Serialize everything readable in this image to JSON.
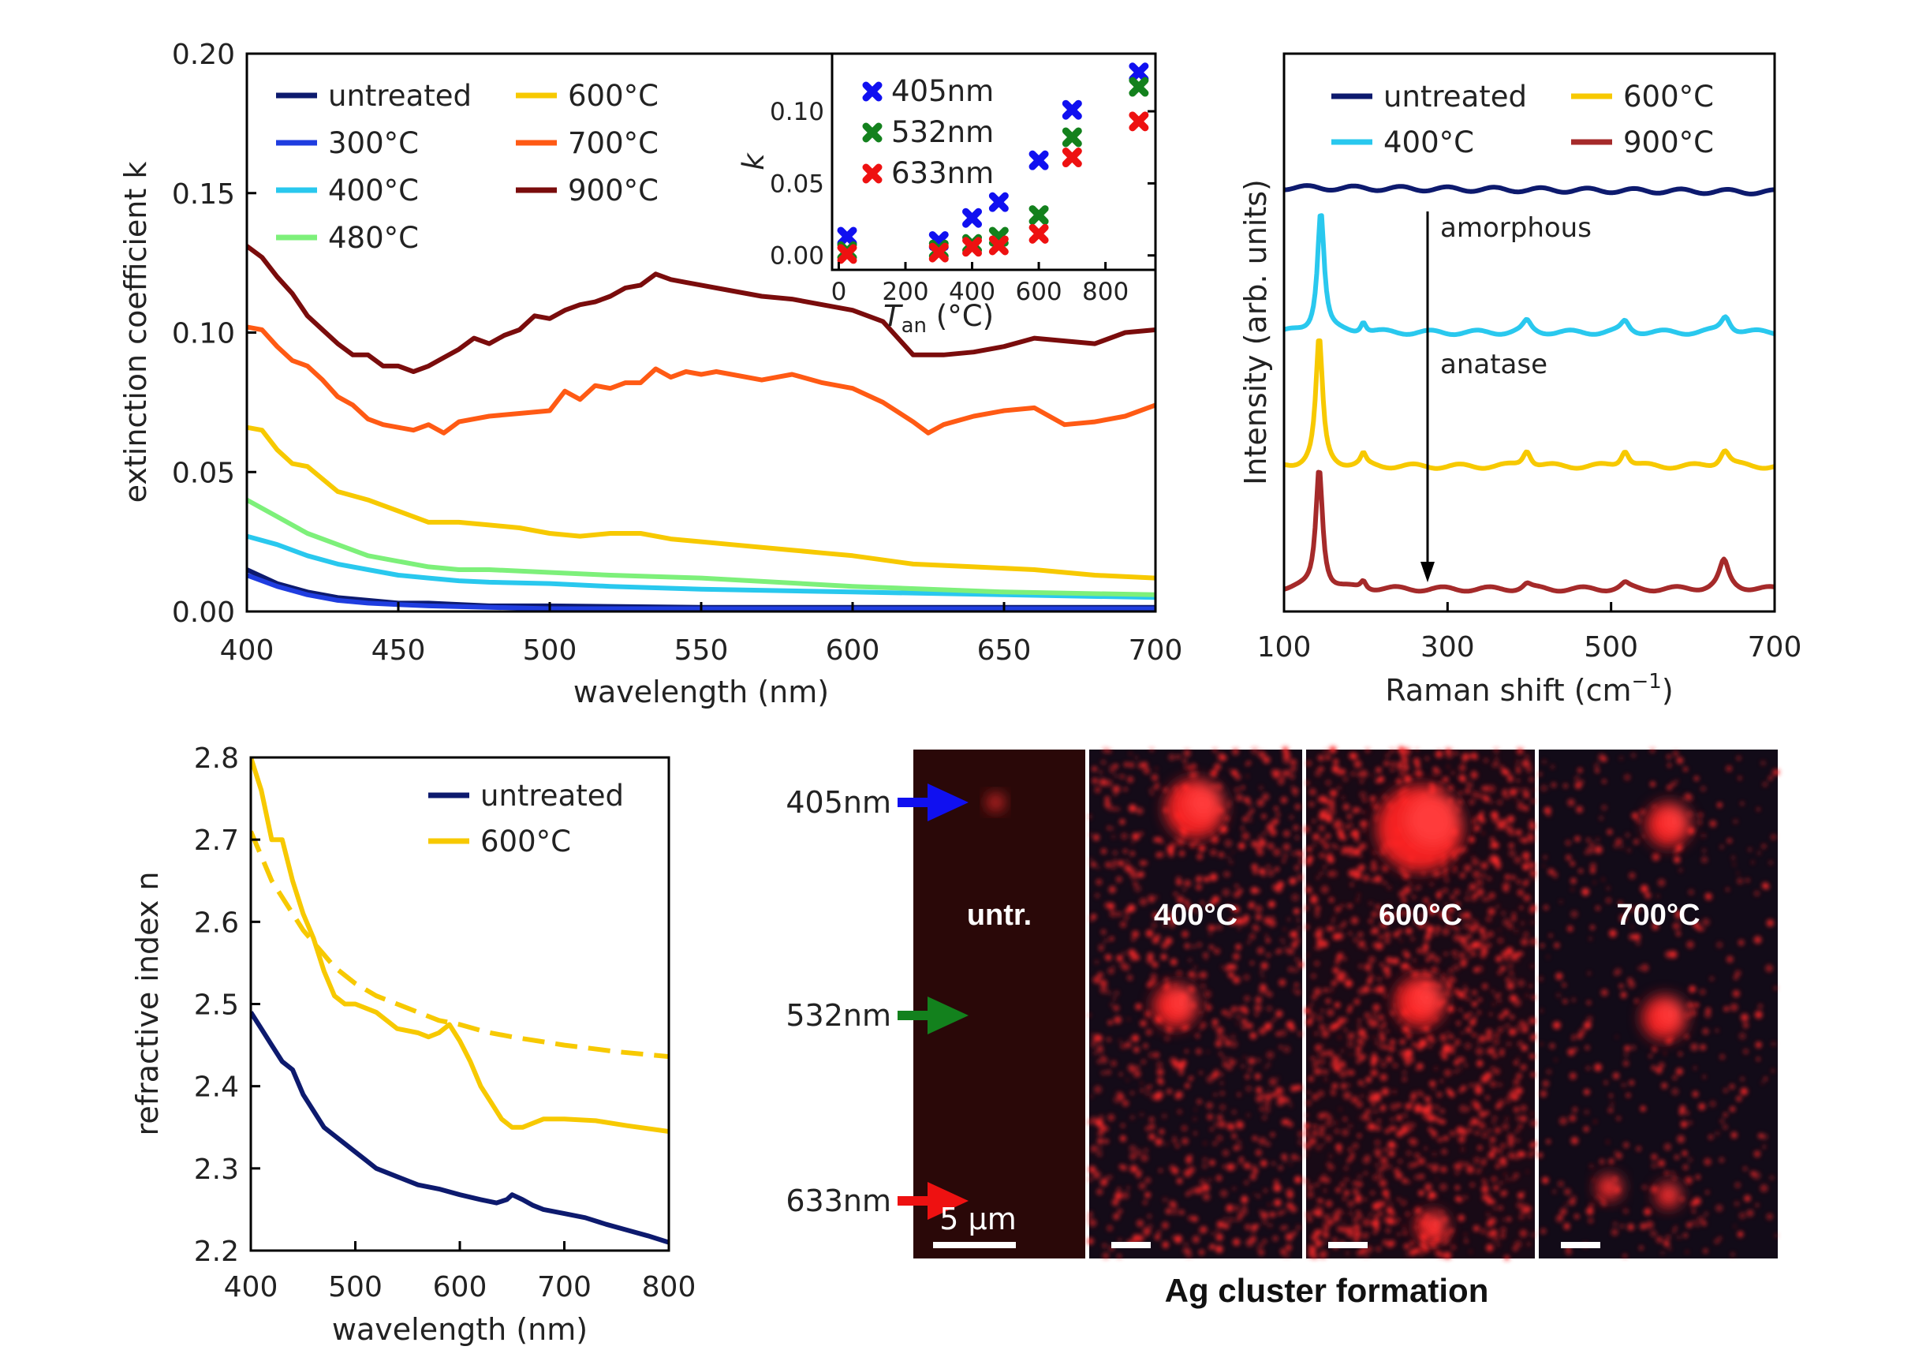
{
  "colors": {
    "untreated": "#0d1a6e",
    "300C": "#1f3de0",
    "400C": "#29c8ee",
    "480C": "#7df07a",
    "600C": "#f7c900",
    "700C": "#ff5a14",
    "900C": "#7a0c0c",
    "900C_raman": "#a52a2a",
    "405nm": "#1010f0",
    "532nm": "#13811d",
    "633nm": "#ee1111"
  },
  "chart_data": [
    {
      "id": "extinction",
      "type": "line",
      "xlabel": "wavelength (nm)",
      "ylabel": "extinction coefficient k",
      "xlim": [
        400,
        700
      ],
      "ylim": [
        0,
        0.2
      ],
      "xticks": [
        "400",
        "450",
        "500",
        "550",
        "600",
        "650",
        "700"
      ],
      "yticks": [
        "0.00",
        "0.05",
        "0.10",
        "0.15",
        "0.20"
      ],
      "legend_position": "top-left",
      "series": [
        {
          "key": "untreated",
          "name": "untreated",
          "x": [
            400,
            410,
            420,
            430,
            440,
            450,
            460,
            480,
            500,
            550,
            600,
            650,
            700
          ],
          "y": [
            0.015,
            0.01,
            0.007,
            0.005,
            0.004,
            0.003,
            0.003,
            0.002,
            0.002,
            0.0015,
            0.0015,
            0.0015,
            0.0015
          ]
        },
        {
          "key": "300C",
          "name": "300°C",
          "x": [
            400,
            410,
            420,
            430,
            440,
            450,
            460,
            480,
            500,
            550,
            600,
            650,
            700
          ],
          "y": [
            0.013,
            0.009,
            0.006,
            0.004,
            0.003,
            0.0025,
            0.002,
            0.0015,
            0.001,
            0.001,
            0.001,
            0.001,
            0.001
          ]
        },
        {
          "key": "400C",
          "name": "400°C",
          "x": [
            400,
            410,
            420,
            430,
            440,
            450,
            460,
            470,
            480,
            500,
            520,
            550,
            600,
            650,
            700
          ],
          "y": [
            0.027,
            0.024,
            0.02,
            0.017,
            0.015,
            0.013,
            0.012,
            0.011,
            0.0105,
            0.01,
            0.009,
            0.008,
            0.007,
            0.006,
            0.005
          ]
        },
        {
          "key": "480C",
          "name": "480°C",
          "x": [
            400,
            410,
            420,
            430,
            440,
            450,
            460,
            470,
            480,
            500,
            520,
            550,
            600,
            650,
            700
          ],
          "y": [
            0.04,
            0.034,
            0.028,
            0.024,
            0.02,
            0.018,
            0.016,
            0.015,
            0.015,
            0.014,
            0.013,
            0.012,
            0.009,
            0.007,
            0.006
          ]
        },
        {
          "key": "600C",
          "name": "600°C",
          "x": [
            400,
            405,
            410,
            415,
            420,
            430,
            440,
            450,
            460,
            470,
            480,
            490,
            500,
            510,
            520,
            530,
            540,
            550,
            560,
            570,
            580,
            590,
            600,
            620,
            640,
            660,
            680,
            700
          ],
          "y": [
            0.066,
            0.065,
            0.058,
            0.053,
            0.052,
            0.043,
            0.04,
            0.036,
            0.032,
            0.032,
            0.031,
            0.03,
            0.028,
            0.027,
            0.028,
            0.028,
            0.026,
            0.025,
            0.024,
            0.023,
            0.022,
            0.021,
            0.02,
            0.017,
            0.016,
            0.015,
            0.013,
            0.012
          ]
        },
        {
          "key": "700C",
          "name": "700°C",
          "x": [
            400,
            405,
            410,
            415,
            420,
            425,
            430,
            435,
            440,
            445,
            450,
            455,
            460,
            465,
            470,
            480,
            490,
            500,
            505,
            510,
            515,
            520,
            525,
            530,
            535,
            540,
            545,
            550,
            555,
            560,
            570,
            580,
            590,
            600,
            610,
            620,
            625,
            630,
            640,
            650,
            660,
            670,
            680,
            690,
            700
          ],
          "y": [
            0.102,
            0.101,
            0.095,
            0.09,
            0.088,
            0.083,
            0.077,
            0.074,
            0.069,
            0.067,
            0.066,
            0.065,
            0.067,
            0.064,
            0.068,
            0.07,
            0.071,
            0.072,
            0.079,
            0.076,
            0.081,
            0.08,
            0.082,
            0.082,
            0.087,
            0.084,
            0.086,
            0.085,
            0.086,
            0.085,
            0.083,
            0.085,
            0.082,
            0.08,
            0.075,
            0.068,
            0.064,
            0.067,
            0.07,
            0.072,
            0.073,
            0.067,
            0.068,
            0.07,
            0.074
          ]
        },
        {
          "key": "900C",
          "name": "900°C",
          "x": [
            400,
            405,
            410,
            415,
            420,
            425,
            430,
            435,
            440,
            445,
            450,
            455,
            460,
            465,
            470,
            475,
            480,
            485,
            490,
            495,
            500,
            505,
            510,
            515,
            520,
            525,
            530,
            535,
            540,
            545,
            550,
            560,
            570,
            580,
            590,
            600,
            610,
            620,
            630,
            640,
            650,
            660,
            670,
            680,
            690,
            700
          ],
          "y": [
            0.131,
            0.127,
            0.12,
            0.114,
            0.106,
            0.101,
            0.096,
            0.092,
            0.092,
            0.088,
            0.088,
            0.086,
            0.088,
            0.091,
            0.094,
            0.098,
            0.096,
            0.099,
            0.101,
            0.106,
            0.105,
            0.108,
            0.11,
            0.111,
            0.113,
            0.116,
            0.117,
            0.121,
            0.119,
            0.118,
            0.117,
            0.115,
            0.113,
            0.112,
            0.11,
            0.108,
            0.104,
            0.092,
            0.092,
            0.093,
            0.095,
            0.098,
            0.097,
            0.096,
            0.1,
            0.101
          ]
        }
      ]
    },
    {
      "id": "inset",
      "type": "scatter",
      "xlabel_main": "T",
      "xlabel_sub": "an",
      "xlabel_unit": " (°C)",
      "ylabel": "k",
      "xlim": [
        -20,
        950
      ],
      "ylim": [
        -0.01,
        0.14
      ],
      "xticks": [
        "0",
        "200",
        "400",
        "600",
        "800"
      ],
      "yticks": [
        "0.00",
        "0.05",
        "0.10"
      ],
      "legend_position": "top-left",
      "series": [
        {
          "key": "405nm",
          "name": "405nm",
          "x": [
            25,
            300,
            400,
            480,
            600,
            700,
            900
          ],
          "y": [
            0.013,
            0.01,
            0.026,
            0.037,
            0.066,
            0.101,
            0.127
          ]
        },
        {
          "key": "532nm",
          "name": "532nm",
          "x": [
            25,
            300,
            400,
            480,
            600,
            700,
            900
          ],
          "y": [
            0.003,
            0.004,
            0.008,
            0.013,
            0.028,
            0.082,
            0.117
          ]
        },
        {
          "key": "633nm",
          "name": "633nm",
          "x": [
            25,
            300,
            400,
            480,
            600,
            700,
            900
          ],
          "y": [
            0.001,
            0.002,
            0.006,
            0.007,
            0.015,
            0.068,
            0.093
          ]
        }
      ]
    },
    {
      "id": "raman",
      "type": "line",
      "xlabel": "Raman shift (cm",
      "xlabel_sup": "−1",
      "xlabel_end": ")",
      "ylabel": "Intensity (arb. units)",
      "xlim": [
        100,
        700
      ],
      "xticks": [
        "100",
        "300",
        "500",
        "700"
      ],
      "legend_position": "top",
      "annotations": [
        "amorphous",
        "anatase"
      ],
      "series": [
        {
          "key": "untreated",
          "name": "untreated",
          "baseline": 0.76,
          "peaks": []
        },
        {
          "key": "400C",
          "name": "400°C",
          "baseline": 0.5,
          "peaks": [
            [
              145,
              0.22,
              5
            ],
            [
              197,
              0.02,
              4
            ],
            [
              397,
              0.02,
              6
            ],
            [
              517,
              0.02,
              6
            ],
            [
              640,
              0.03,
              7
            ]
          ]
        },
        {
          "key": "600C",
          "name": "600°C",
          "baseline": 0.26,
          "peaks": [
            [
              143,
              0.23,
              5
            ],
            [
              197,
              0.02,
              4
            ],
            [
              397,
              0.03,
              6
            ],
            [
              517,
              0.03,
              6
            ],
            [
              639,
              0.03,
              7
            ]
          ]
        },
        {
          "key": "900C",
          "name": "900°C",
          "baseline": 0.04,
          "peaks": [
            [
              143,
              0.22,
              5
            ],
            [
              197,
              0.015,
              4
            ],
            [
              397,
              0.01,
              6
            ],
            [
              517,
              0.01,
              6
            ],
            [
              638,
              0.05,
              7
            ]
          ]
        }
      ]
    },
    {
      "id": "refractive",
      "type": "line",
      "xlabel": "wavelength (nm)",
      "ylabel": "refractive index n",
      "xlim": [
        400,
        800
      ],
      "ylim": [
        2.2,
        2.8
      ],
      "xticks": [
        "400",
        "500",
        "600",
        "700",
        "800"
      ],
      "yticks": [
        "2.2",
        "2.3",
        "2.4",
        "2.5",
        "2.6",
        "2.7",
        "2.8"
      ],
      "legend_position": "top-right",
      "series": [
        {
          "key": "untreated",
          "name": "untreated",
          "x": [
            400,
            410,
            420,
            430,
            440,
            450,
            460,
            470,
            480,
            490,
            500,
            510,
            520,
            540,
            560,
            580,
            600,
            620,
            635,
            645,
            650,
            660,
            670,
            680,
            700,
            720,
            740,
            760,
            780,
            800
          ],
          "y": [
            2.49,
            2.47,
            2.45,
            2.43,
            2.42,
            2.39,
            2.37,
            2.35,
            2.34,
            2.33,
            2.32,
            2.31,
            2.3,
            2.29,
            2.28,
            2.275,
            2.268,
            2.262,
            2.258,
            2.262,
            2.268,
            2.262,
            2.255,
            2.25,
            2.245,
            2.24,
            2.232,
            2.225,
            2.218,
            2.21
          ]
        },
        {
          "key": "600C",
          "name": "600°C",
          "style": "solid",
          "x": [
            400,
            410,
            420,
            430,
            440,
            450,
            460,
            470,
            480,
            490,
            500,
            520,
            540,
            560,
            570,
            580,
            590,
            600,
            610,
            620,
            630,
            640,
            650,
            660,
            670,
            680,
            700,
            730,
            760,
            800
          ],
          "y": [
            2.8,
            2.76,
            2.7,
            2.7,
            2.65,
            2.61,
            2.58,
            2.54,
            2.51,
            2.5,
            2.5,
            2.49,
            2.47,
            2.465,
            2.46,
            2.465,
            2.475,
            2.455,
            2.43,
            2.4,
            2.38,
            2.36,
            2.35,
            2.35,
            2.355,
            2.36,
            2.36,
            2.358,
            2.352,
            2.345
          ]
        },
        {
          "key": "600C",
          "name": "",
          "style": "dashed",
          "x": [
            400,
            410,
            420,
            430,
            440,
            450,
            460,
            470,
            480,
            500,
            520,
            540,
            560,
            580,
            600,
            625,
            650,
            675,
            700,
            725,
            750,
            775,
            800
          ],
          "y": [
            2.71,
            2.68,
            2.65,
            2.63,
            2.61,
            2.59,
            2.575,
            2.56,
            2.545,
            2.525,
            2.51,
            2.5,
            2.49,
            2.48,
            2.475,
            2.466,
            2.46,
            2.455,
            2.45,
            2.446,
            2.442,
            2.439,
            2.436
          ]
        }
      ]
    }
  ],
  "microscopy": {
    "wavelength_labels": [
      {
        "key": "405nm",
        "text": "405nm"
      },
      {
        "key": "532nm",
        "text": "532nm"
      },
      {
        "key": "633nm",
        "text": "633nm"
      }
    ],
    "panels": [
      "untr.",
      "400°C",
      "600°C",
      "700°C"
    ],
    "scale_bar": "5 μm",
    "caption": "Ag cluster formation"
  }
}
